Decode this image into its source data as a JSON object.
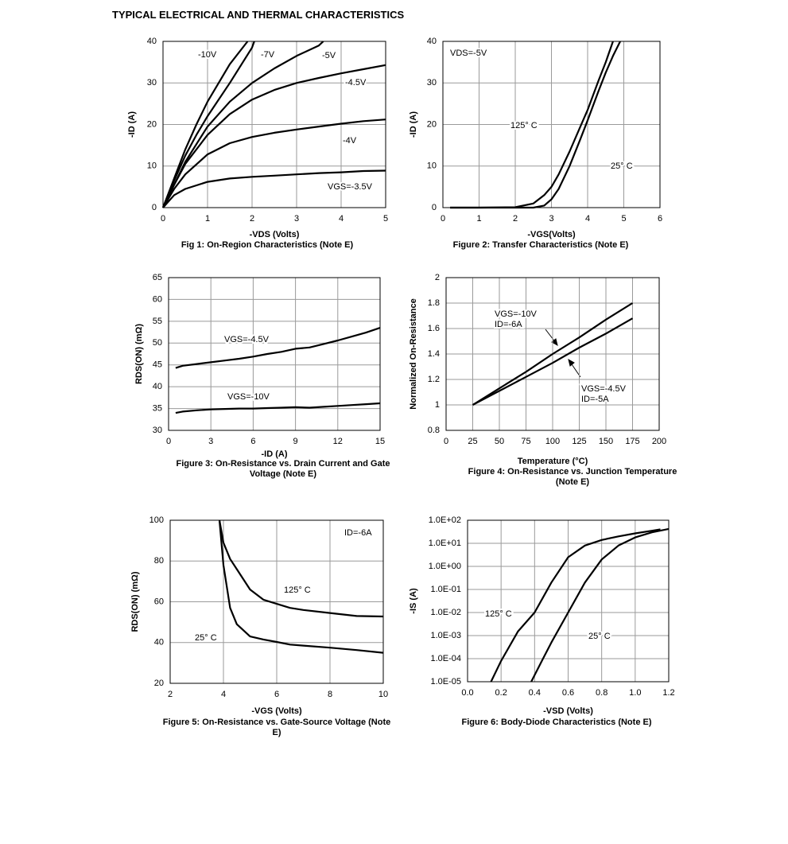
{
  "title": "TYPICAL ELECTRICAL AND THERMAL CHARACTERISTICS",
  "chart_data": [
    {
      "type": "line",
      "title": "Fig 1: On-Region Characteristics (Note E)",
      "x_label": "-VDS (Volts)",
      "y_label": "-ID (A)",
      "xlim": [
        0,
        5
      ],
      "xticks": [
        0,
        1,
        2,
        3,
        4,
        5
      ],
      "ylim": [
        0,
        40
      ],
      "yticks": [
        0,
        10,
        20,
        30,
        40
      ],
      "grid": true,
      "series": [
        {
          "name": "-10V",
          "color": "#000000",
          "x": [
            0,
            0.25,
            0.5,
            0.75,
            1,
            1.5,
            1.9
          ],
          "values": [
            0,
            7,
            14,
            20,
            25.5,
            34.5,
            40
          ]
        },
        {
          "name": "-7V",
          "color": "#000000",
          "x": [
            0,
            0.25,
            0.5,
            0.75,
            1,
            1.5,
            2,
            2.05
          ],
          "values": [
            0,
            6.5,
            12.5,
            17.5,
            22,
            30,
            38.5,
            40
          ]
        },
        {
          "name": "-5V",
          "color": "#000000",
          "x": [
            0,
            0.25,
            0.5,
            1,
            1.5,
            2,
            2.5,
            3,
            3.5,
            3.6
          ],
          "values": [
            0,
            5.5,
            11,
            19.5,
            25.5,
            30,
            33.5,
            36.5,
            39,
            40
          ]
        },
        {
          "name": "-4.5V",
          "color": "#000000",
          "x": [
            0,
            0.25,
            0.5,
            1,
            1.5,
            2,
            2.5,
            3,
            3.5,
            4,
            4.5,
            5
          ],
          "values": [
            0,
            5.5,
            10.5,
            17.5,
            22.5,
            26,
            28.3,
            30,
            31.2,
            32.3,
            33.3,
            34.3
          ]
        },
        {
          "name": "-4V",
          "color": "#000000",
          "x": [
            0,
            0.25,
            0.5,
            1,
            1.5,
            2,
            2.5,
            3,
            3.5,
            4,
            4.5,
            5
          ],
          "values": [
            0,
            4.5,
            8,
            12.8,
            15.5,
            17,
            18,
            18.8,
            19.5,
            20.2,
            20.8,
            21.2
          ]
        },
        {
          "name": "VGS=-3.5V",
          "color": "#000000",
          "x": [
            0,
            0.25,
            0.5,
            1,
            1.5,
            2,
            2.5,
            3,
            3.5,
            4,
            4.5,
            5
          ],
          "values": [
            0,
            3,
            4.5,
            6.2,
            7,
            7.4,
            7.7,
            8,
            8.3,
            8.5,
            8.8,
            8.9
          ]
        }
      ]
    },
    {
      "type": "line",
      "title": "Figure 2: Transfer Characteristics (Note E)",
      "x_label": "-VGS(Volts)",
      "y_label": "-ID (A)",
      "annotations": [
        "VDS=-5V"
      ],
      "xlim": [
        0,
        6
      ],
      "xticks": [
        0,
        1,
        2,
        3,
        4,
        5,
        6
      ],
      "ylim": [
        0,
        40
      ],
      "yticks": [
        0,
        10,
        20,
        30,
        40
      ],
      "grid": true,
      "series": [
        {
          "name": "125° C",
          "color": "#000000",
          "x": [
            0.2,
            1,
            2,
            2.5,
            2.8,
            3,
            3.2,
            3.5,
            3.8,
            4,
            4.3,
            4.5,
            4.7
          ],
          "values": [
            0,
            0,
            0.1,
            1,
            3,
            5,
            8,
            13.5,
            19.5,
            23.5,
            30.5,
            35,
            40
          ]
        },
        {
          "name": "25° C",
          "color": "#000000",
          "x": [
            0.2,
            1,
            2,
            2.5,
            2.8,
            3,
            3.2,
            3.5,
            3.8,
            4,
            4.3,
            4.5,
            4.7,
            4.9
          ],
          "values": [
            0,
            0,
            0,
            0,
            0.5,
            2,
            4.5,
            10,
            16.5,
            21,
            28,
            32.5,
            36.5,
            40
          ]
        }
      ]
    },
    {
      "type": "line",
      "title": "Figure 3: On-Resistance vs. Drain Current and Gate Voltage (Note E)",
      "x_label": "-ID (A)",
      "y_label": "RDS(ON) (mΩ)",
      "x": [
        0.5,
        1,
        2,
        3,
        4,
        5,
        6,
        7,
        8,
        9,
        10,
        11,
        12,
        13,
        14,
        15
      ],
      "xlim": [
        0,
        15
      ],
      "xticks": [
        0,
        3,
        6,
        9,
        12,
        15
      ],
      "ylim": [
        30,
        65
      ],
      "yticks": [
        30,
        35,
        40,
        45,
        50,
        55,
        60,
        65
      ],
      "grid": true,
      "series": [
        {
          "name": "VGS=-4.5V",
          "color": "#000000",
          "values": [
            44.3,
            44.8,
            45.2,
            45.6,
            46,
            46.4,
            46.9,
            47.5,
            48,
            48.7,
            49,
            49.8,
            50.6,
            51.5,
            52.4,
            53.5
          ]
        },
        {
          "name": "VGS=-10V",
          "color": "#000000",
          "values": [
            34,
            34.3,
            34.6,
            34.8,
            34.9,
            35,
            35,
            35.1,
            35.2,
            35.3,
            35.2,
            35.4,
            35.6,
            35.8,
            36,
            36.2
          ]
        }
      ]
    },
    {
      "type": "line",
      "title": "Figure 4: On-Resistance vs. Junction Temperature (Note E)",
      "x_label": "Temperature (°C)",
      "y_label": "Normalized On-Resistance",
      "annotations": [
        "ID=-6A",
        "ID=-5A"
      ],
      "x": [
        25,
        50,
        75,
        100,
        125,
        150,
        175
      ],
      "xlim": [
        0,
        200
      ],
      "xticks": [
        0,
        25,
        50,
        75,
        100,
        125,
        150,
        175,
        200
      ],
      "ylim": [
        0.8,
        2
      ],
      "yticks": [
        0.8,
        1,
        1.2,
        1.4,
        1.6,
        1.8,
        2
      ],
      "grid": true,
      "series": [
        {
          "name": "VGS=-10V",
          "color": "#000000",
          "values": [
            1,
            1.13,
            1.26,
            1.4,
            1.53,
            1.67,
            1.8
          ]
        },
        {
          "name": "VGS=-4.5V",
          "color": "#000000",
          "values": [
            1,
            1.11,
            1.22,
            1.33,
            1.45,
            1.56,
            1.68
          ]
        }
      ]
    },
    {
      "type": "line",
      "title": "Figure 5: On-Resistance vs. Gate-Source Voltage (Note E)",
      "x_label": "-VGS (Volts)",
      "y_label": "RDS(ON) (mΩ)",
      "annotations": [
        "ID=-6A"
      ],
      "x": [
        3.85,
        4,
        4.25,
        4.5,
        5,
        5.5,
        6,
        6.5,
        7,
        8,
        9,
        10
      ],
      "xlim": [
        2,
        10
      ],
      "xticks": [
        2,
        4,
        6,
        8,
        10
      ],
      "ylim": [
        20,
        100
      ],
      "yticks": [
        20,
        40,
        60,
        80,
        100
      ],
      "grid": true,
      "series": [
        {
          "name": "125° C",
          "color": "#000000",
          "values": [
            100,
            89,
            81,
            76,
            66,
            61,
            59,
            57,
            56,
            54.5,
            53,
            52.8
          ]
        },
        {
          "name": "25° C",
          "color": "#000000",
          "values": [
            100,
            78,
            57,
            49,
            43,
            41.5,
            40.3,
            39,
            38.5,
            37.5,
            36.3,
            35
          ]
        }
      ]
    },
    {
      "type": "line",
      "title": "Figure 6: Body-Diode Characteristics (Note E)",
      "x_label": "-VSD (Volts)",
      "y_label": "-IS (A)",
      "log_y": true,
      "xlim": [
        0,
        1.2
      ],
      "xticks": [
        {
          "value": 0,
          "label": "0.0"
        },
        0.2,
        0.4,
        0.6,
        0.8,
        {
          "value": 1,
          "label": "1.0"
        },
        1.2
      ],
      "ylim": [
        1e-05,
        100
      ],
      "yticks": [
        {
          "value": 1e-05,
          "label": "1.0E-05"
        },
        {
          "value": 0.0001,
          "label": "1.0E-04"
        },
        {
          "value": 0.001,
          "label": "1.0E-03"
        },
        {
          "value": 0.01,
          "label": "1.0E-02"
        },
        {
          "value": 0.1,
          "label": "1.0E-01"
        },
        {
          "value": 1,
          "label": "1.0E+00"
        },
        {
          "value": 10,
          "label": "1.0E+01"
        },
        {
          "value": 100,
          "label": "1.0E+02"
        }
      ],
      "grid": true,
      "series": [
        {
          "name": "125° C",
          "color": "#000000",
          "x": [
            0.14,
            0.2,
            0.3,
            0.4,
            0.5,
            0.6,
            0.7,
            0.8,
            0.9,
            1,
            1.1,
            1.15
          ],
          "values": [
            1e-05,
            8e-05,
            0.0015,
            0.01,
            0.2,
            2.5,
            8,
            14,
            20,
            27,
            35,
            40
          ]
        },
        {
          "name": "25° C",
          "color": "#000000",
          "x": [
            0.38,
            0.45,
            0.5,
            0.6,
            0.7,
            0.8,
            0.9,
            1,
            1.1,
            1.2
          ],
          "values": [
            1e-05,
            0.0001,
            0.0005,
            0.01,
            0.2,
            2,
            8,
            18,
            30,
            42
          ]
        }
      ]
    }
  ]
}
